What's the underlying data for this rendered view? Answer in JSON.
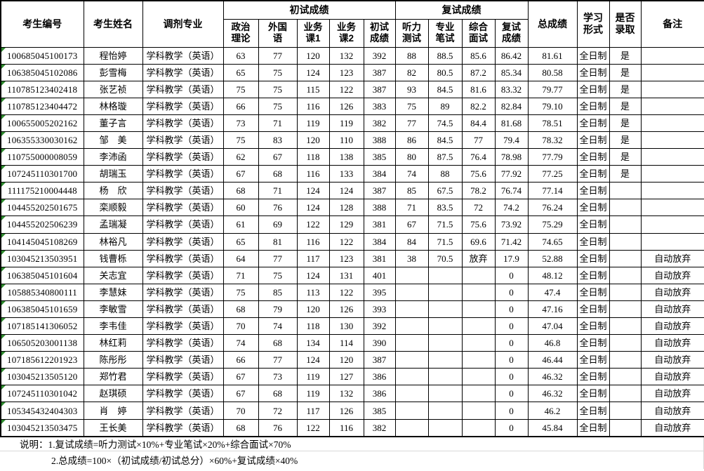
{
  "header": {
    "candidate_id": "考生编号",
    "candidate_name": "考生姓名",
    "major": "调剂专业",
    "initial_group": "初试成绩",
    "retest_group": "复试成绩",
    "politics": "政治\n理论",
    "foreign": "外国\n语",
    "course1": "业务\n课1",
    "course2": "业务\n课2",
    "initial_total": "初试\n成绩",
    "listening": "听力\n测试",
    "written": "专业\n笔试",
    "interview": "综合\n面试",
    "retest_total": "复试\n成绩",
    "total": "总成绩",
    "study_form": "学习\n形式",
    "admitted": "是否\n录取",
    "remark": "备注"
  },
  "rows": [
    [
      "100685045100173",
      "程怡婷",
      "学科教学（英语）",
      "63",
      "77",
      "120",
      "132",
      "392",
      "88",
      "88.5",
      "85.6",
      "86.42",
      "81.61",
      "全日制",
      "是",
      ""
    ],
    [
      "106385045102086",
      "彭雪梅",
      "学科教学（英语）",
      "65",
      "75",
      "124",
      "123",
      "387",
      "82",
      "80.5",
      "87.2",
      "85.34",
      "80.58",
      "全日制",
      "是",
      ""
    ],
    [
      "110785123402418",
      "张艺祯",
      "学科教学（英语）",
      "75",
      "75",
      "115",
      "122",
      "387",
      "93",
      "84.5",
      "81.6",
      "83.32",
      "79.77",
      "全日制",
      "是",
      ""
    ],
    [
      "110785123404472",
      "林格璇",
      "学科教学（英语）",
      "66",
      "75",
      "116",
      "126",
      "383",
      "75",
      "89",
      "82.2",
      "82.84",
      "79.10",
      "全日制",
      "是",
      ""
    ],
    [
      "100655005202162",
      "董子言",
      "学科教学（英语）",
      "73",
      "71",
      "119",
      "119",
      "382",
      "77",
      "74.5",
      "84.4",
      "81.68",
      "78.51",
      "全日制",
      "是",
      ""
    ],
    [
      "106355330030162",
      "邹　美",
      "学科教学（英语）",
      "75",
      "83",
      "120",
      "110",
      "388",
      "86",
      "84.5",
      "77",
      "79.4",
      "78.32",
      "全日制",
      "是",
      ""
    ],
    [
      "110755000008059",
      "李沛函",
      "学科教学（英语）",
      "62",
      "67",
      "118",
      "138",
      "385",
      "80",
      "87.5",
      "76.4",
      "78.98",
      "77.79",
      "全日制",
      "是",
      ""
    ],
    [
      "107245110301700",
      "胡瑞玉",
      "学科教学（英语）",
      "67",
      "68",
      "116",
      "133",
      "384",
      "74",
      "88",
      "75.6",
      "77.92",
      "77.25",
      "全日制",
      "是",
      ""
    ],
    [
      "111175210004448",
      "杨　欣",
      "学科教学（英语）",
      "68",
      "71",
      "124",
      "124",
      "387",
      "85",
      "67.5",
      "78.2",
      "76.74",
      "77.14",
      "全日制",
      "",
      ""
    ],
    [
      "104455202501675",
      "栾顺毅",
      "学科教学（英语）",
      "60",
      "76",
      "124",
      "128",
      "388",
      "71",
      "83.5",
      "72",
      "74.2",
      "76.24",
      "全日制",
      "",
      ""
    ],
    [
      "104455202506239",
      "孟瑞凝",
      "学科教学（英语）",
      "61",
      "69",
      "122",
      "129",
      "381",
      "67",
      "71.5",
      "75.6",
      "73.92",
      "75.29",
      "全日制",
      "",
      ""
    ],
    [
      "104145045108269",
      "林裕凡",
      "学科教学（英语）",
      "65",
      "81",
      "116",
      "122",
      "384",
      "84",
      "71.5",
      "69.6",
      "71.42",
      "74.65",
      "全日制",
      "",
      ""
    ],
    [
      "103045213503951",
      "钱曹栎",
      "学科教学（英语）",
      "64",
      "77",
      "117",
      "123",
      "381",
      "38",
      "70.5",
      "放弃",
      "17.9",
      "52.88",
      "全日制",
      "",
      "自动放弃"
    ],
    [
      "106385045101604",
      "关志宜",
      "学科教学（英语）",
      "71",
      "75",
      "124",
      "131",
      "401",
      "",
      "",
      "",
      "0",
      "48.12",
      "全日制",
      "",
      "自动放弃"
    ],
    [
      "105885340800111",
      "李慧妹",
      "学科教学（英语）",
      "75",
      "85",
      "113",
      "122",
      "395",
      "",
      "",
      "",
      "0",
      "47.4",
      "全日制",
      "",
      "自动放弃"
    ],
    [
      "106385045101659",
      "李敏雪",
      "学科教学（英语）",
      "68",
      "79",
      "120",
      "126",
      "393",
      "",
      "",
      "",
      "0",
      "47.16",
      "全日制",
      "",
      "自动放弃"
    ],
    [
      "107185141306052",
      "李韦佳",
      "学科教学（英语）",
      "70",
      "74",
      "118",
      "130",
      "392",
      "",
      "",
      "",
      "0",
      "47.04",
      "全日制",
      "",
      "自动放弃"
    ],
    [
      "106505203001138",
      "林红莉",
      "学科教学（英语）",
      "74",
      "68",
      "134",
      "114",
      "390",
      "",
      "",
      "",
      "0",
      "46.8",
      "全日制",
      "",
      "自动放弃"
    ],
    [
      "107185612201923",
      "陈彤彤",
      "学科教学（英语）",
      "66",
      "77",
      "124",
      "120",
      "387",
      "",
      "",
      "",
      "0",
      "46.44",
      "全日制",
      "",
      "自动放弃"
    ],
    [
      "103045213505120",
      "郑竹君",
      "学科教学（英语）",
      "67",
      "73",
      "119",
      "127",
      "386",
      "",
      "",
      "",
      "0",
      "46.32",
      "全日制",
      "",
      "自动放弃"
    ],
    [
      "107245110301042",
      "赵琪硕",
      "学科教学（英语）",
      "67",
      "68",
      "119",
      "132",
      "386",
      "",
      "",
      "",
      "0",
      "46.32",
      "全日制",
      "",
      "自动放弃"
    ],
    [
      "105345432404303",
      "肖　婷",
      "学科教学（英语）",
      "70",
      "72",
      "117",
      "126",
      "385",
      "",
      "",
      "",
      "0",
      "46.2",
      "全日制",
      "",
      "自动放弃"
    ],
    [
      "103045213503475",
      "王长美",
      "学科教学（英语）",
      "68",
      "76",
      "122",
      "116",
      "382",
      "",
      "",
      "",
      "0",
      "45.84",
      "全日制",
      "",
      "自动放弃"
    ]
  ],
  "notes": {
    "line1": "说明：1.复试成绩=听力测试×10%+专业笔试×20%+综合面试×70%",
    "line2": "2.总成绩=100×（初试成绩/初试总分）×60%+复试成绩×40%"
  },
  "colors": {
    "background": "#ffffff",
    "border": "#000000",
    "text": "#000000",
    "flag_triangle": "#2e8b2e",
    "gridline": "#d9d9d9"
  }
}
